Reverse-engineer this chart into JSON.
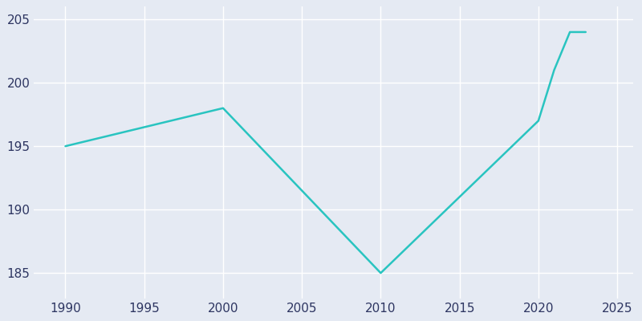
{
  "years": [
    1990,
    2000,
    2010,
    2020,
    2021,
    2022,
    2023
  ],
  "population": [
    195,
    198,
    185,
    197,
    201,
    204,
    204
  ],
  "line_color": "#29c4c0",
  "background_color": "#e5eaf3",
  "grid_color": "#ffffff",
  "text_color": "#2d3561",
  "xlim": [
    1988,
    2026
  ],
  "ylim": [
    183,
    206
  ],
  "xticks": [
    1990,
    1995,
    2000,
    2005,
    2010,
    2015,
    2020,
    2025
  ],
  "yticks": [
    185,
    190,
    195,
    200,
    205
  ],
  "linewidth": 1.8,
  "figsize": [
    8.0,
    4.0
  ],
  "dpi": 100
}
